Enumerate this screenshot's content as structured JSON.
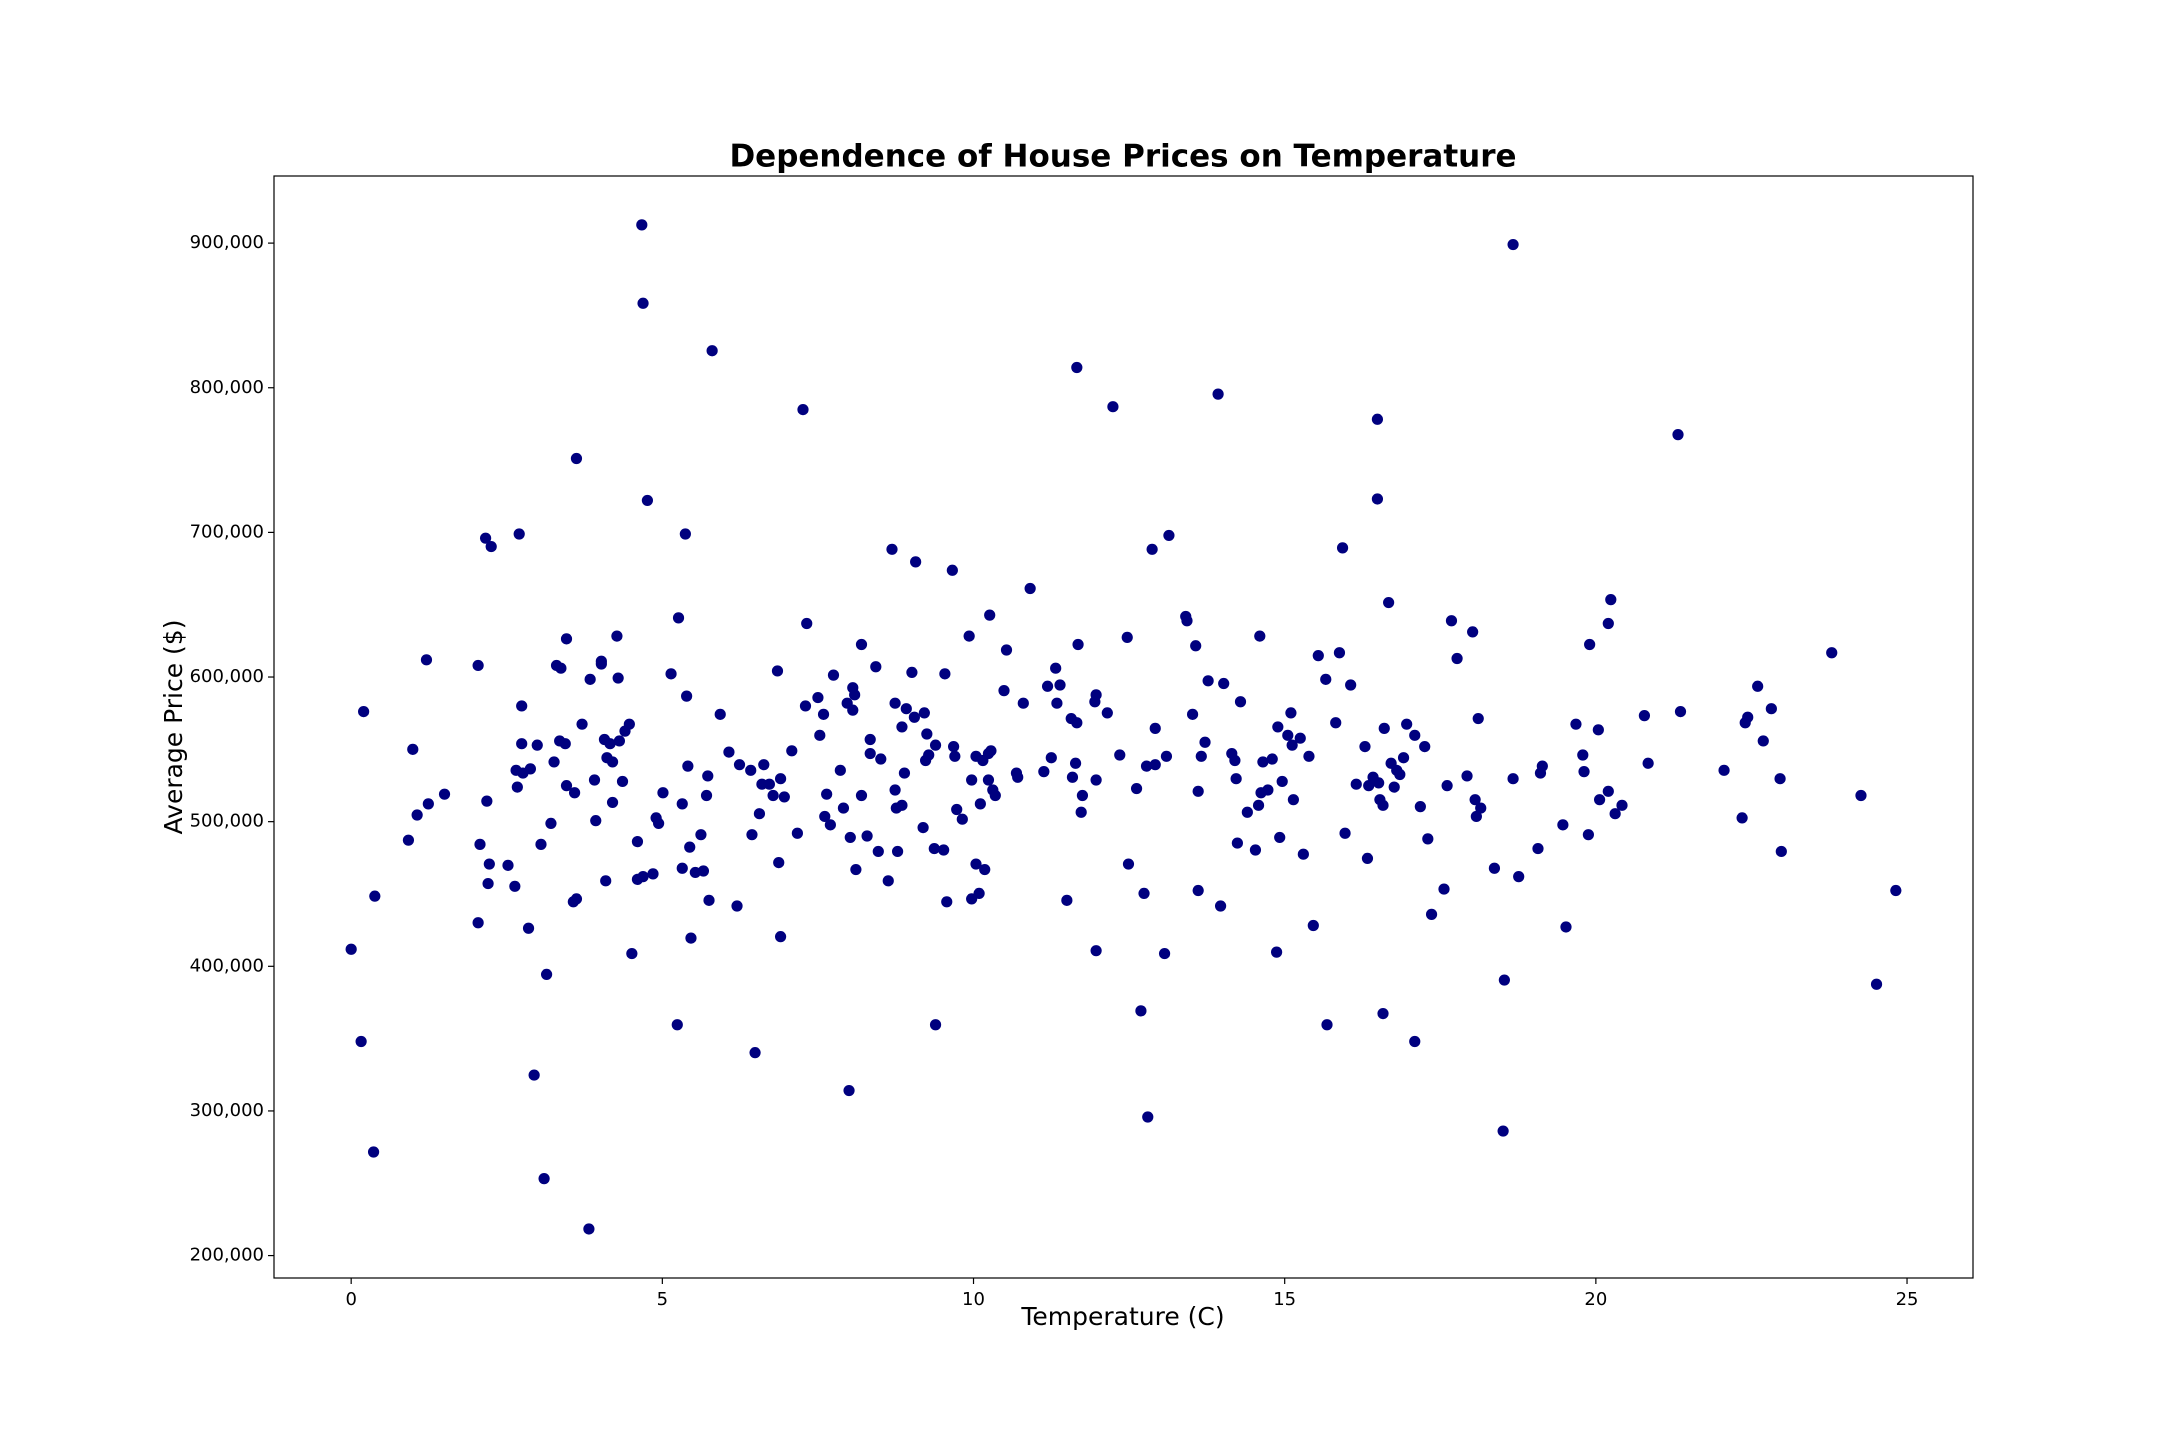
{
  "chart_data": {
    "type": "scatter",
    "title": "Dependence of House Prices on Temperature",
    "x_label": "Temperature (C)",
    "y_label": "Average Price ($)",
    "color": "#00007f",
    "xlim": [
      -1.24,
      26.06
    ],
    "ylim": [
      184500,
      946400
    ],
    "xticks": [
      0,
      5,
      10,
      15,
      20,
      25
    ],
    "yticks": [
      {
        "value": 200000,
        "label": "200,000"
      },
      {
        "value": 300000,
        "label": "300,000"
      },
      {
        "value": 400000,
        "label": "400,000"
      },
      {
        "value": 500000,
        "label": "500,000"
      },
      {
        "value": 600000,
        "label": "600,000"
      },
      {
        "value": 700000,
        "label": "700,000"
      },
      {
        "value": 800000,
        "label": "800,000"
      },
      {
        "value": 900000,
        "label": "900,000"
      }
    ],
    "x": [
      0.0,
      0.16,
      0.2,
      0.36,
      0.38,
      0.92,
      0.99,
      1.06,
      1.21,
      1.24,
      1.5,
      2.04,
      2.04,
      2.07,
      2.16,
      2.18,
      2.2,
      2.25,
      2.22,
      2.52,
      2.63,
      2.65,
      2.7,
      2.67,
      2.74,
      2.74,
      2.76,
      2.85,
      2.88,
      2.94,
      2.99,
      3.05,
      3.1,
      3.14,
      3.21,
      3.26,
      3.3,
      3.37,
      3.35,
      3.44,
      3.46,
      3.46,
      3.57,
      3.62,
      3.62,
      3.59,
      3.71,
      3.82,
      3.84,
      3.91,
      3.93,
      4.02,
      4.02,
      4.07,
      4.09,
      4.11,
      4.16,
      4.2,
      4.2,
      4.27,
      4.29,
      4.31,
      4.36,
      4.4,
      4.47,
      4.51,
      4.6,
      4.6,
      4.67,
      4.69,
      4.69,
      4.76,
      4.85,
      4.9,
      4.94,
      5.01,
      5.14,
      5.24,
      5.26,
      5.32,
      5.32,
      5.37,
      5.39,
      5.41,
      5.44,
      5.46,
      5.53,
      5.62,
      5.66,
      5.71,
      5.73,
      5.75,
      5.8,
      5.93,
      6.07,
      6.2,
      6.24,
      6.42,
      6.44,
      6.49,
      6.56,
      6.6,
      6.63,
      6.72,
      6.78,
      6.85,
      6.87,
      6.9,
      6.9,
      6.96,
      7.08,
      7.17,
      7.26,
      7.3,
      7.32,
      7.5,
      7.53,
      7.59,
      7.61,
      7.64,
      7.7,
      7.75,
      7.86,
      7.91,
      7.97,
      8.0,
      8.02,
      8.06,
      8.06,
      8.09,
      8.11,
      8.2,
      8.2,
      8.29,
      8.34,
      8.34,
      8.43,
      8.47,
      8.51,
      8.63,
      8.69,
      8.74,
      8.74,
      8.76,
      8.78,
      8.85,
      8.85,
      8.89,
      8.92,
      9.01,
      9.05,
      9.07,
      9.19,
      9.21,
      9.23,
      9.25,
      9.28,
      9.37,
      9.39,
      9.39,
      9.52,
      9.54,
      9.57,
      9.66,
      9.68,
      9.7,
      9.73,
      9.82,
      9.93,
      9.97,
      9.97,
      10.04,
      10.04,
      10.09,
      10.11,
      10.15,
      10.18,
      10.24,
      10.24,
      10.26,
      10.28,
      10.31,
      10.35,
      10.49,
      10.53,
      10.69,
      10.71,
      10.8,
      10.91,
      11.13,
      11.19,
      11.25,
      11.32,
      11.34,
      11.39,
      11.5,
      11.57,
      11.59,
      11.64,
      11.66,
      11.66,
      11.68,
      11.73,
      11.75,
      11.95,
      11.97,
      11.97,
      11.97,
      12.15,
      12.24,
      12.35,
      12.47,
      12.49,
      12.62,
      12.69,
      12.74,
      12.78,
      12.8,
      12.87,
      12.92,
      12.92,
      13.07,
      13.1,
      13.14,
      13.41,
      13.43,
      13.52,
      13.57,
      13.61,
      13.61,
      13.66,
      13.72,
      13.77,
      13.93,
      13.97,
      14.02,
      14.15,
      14.2,
      14.22,
      14.24,
      14.29,
      14.4,
      14.53,
      14.58,
      14.6,
      14.62,
      14.65,
      14.73,
      14.8,
      14.87,
      14.89,
      14.92,
      14.96,
      15.05,
      15.1,
      15.12,
      15.14,
      15.25,
      15.3,
      15.39,
      15.46,
      15.54,
      15.66,
      15.68,
      15.82,
      15.88,
      15.93,
      15.97,
      16.06,
      16.15,
      16.29,
      16.33,
      16.35,
      16.42,
      16.49,
      16.49,
      16.51,
      16.53,
      16.58,
      16.58,
      16.6,
      16.67,
      16.71,
      16.76,
      16.8,
      16.85,
      16.91,
      16.96,
      17.09,
      17.09,
      17.18,
      17.25,
      17.3,
      17.36,
      17.56,
      17.61,
      17.68,
      17.77,
      17.93,
      18.02,
      18.06,
      18.08,
      18.11,
      18.15,
      18.37,
      18.51,
      18.53,
      18.67,
      18.67,
      18.76,
      19.07,
      19.11,
      19.14,
      19.47,
      19.52,
      19.68,
      19.79,
      19.81,
      19.88,
      19.9,
      20.04,
      20.06,
      20.2,
      20.2,
      20.24,
      20.31,
      20.42,
      20.78,
      20.84,
      21.32,
      21.36,
      22.06,
      22.35,
      22.4,
      22.44,
      22.6,
      22.69,
      22.82,
      22.96,
      22.98,
      23.79,
      24.26,
      24.51,
      24.82
    ],
    "values": [
      411800,
      348000,
      576100,
      271600,
      448500,
      487200,
      550000,
      504600,
      611900,
      512300,
      519000,
      430100,
      608000,
      484300,
      696000,
      514200,
      457200,
      690200,
      470700,
      469800,
      455300,
      535500,
      698900,
      523900,
      580000,
      553900,
      533600,
      426300,
      536500,
      324800,
      552900,
      484300,
      253200,
      394400,
      498800,
      541300,
      608000,
      606100,
      555800,
      553900,
      626400,
      524900,
      444600,
      751100,
      446600,
      520000,
      567400,
      218400,
      598400,
      528800,
      500700,
      610900,
      609000,
      556800,
      459100,
      544200,
      553900,
      513300,
      541300,
      628300,
      599300,
      555800,
      527800,
      562600,
      567400,
      408800,
      486200,
      460100,
      912600,
      858400,
      462000,
      722100,
      463900,
      502600,
      498800,
      520000,
      602200,
      359600,
      640900,
      467800,
      512300,
      698900,
      586800,
      538400,
      482400,
      419500,
      464900,
      491000,
      465900,
      518100,
      531600,
      445600,
      825600,
      574200,
      548100,
      441700,
      539400,
      535500,
      491000,
      340300,
      505500,
      525900,
      539400,
      525900,
      518100,
      604200,
      471700,
      420500,
      529700,
      517100,
      549000,
      492000,
      784900,
      580000,
      637000,
      585800,
      559700,
      574200,
      503600,
      519000,
      497800,
      601300,
      535500,
      509400,
      581900,
      314100,
      489100,
      592600,
      577100,
      587700,
      466900,
      622500,
      518100,
      490100,
      556800,
      547100,
      607100,
      479400,
      543300,
      459100,
      688300,
      581900,
      521900,
      509400,
      479400,
      565500,
      511300,
      533600,
      578100,
      603200,
      572200,
      679600,
      495900,
      575200,
      542300,
      560600,
      546100,
      481400,
      359600,
      552900,
      480400,
      602200,
      444600,
      673800,
      551900,
      545200,
      508400,
      501700,
      628300,
      446600,
      528800,
      470700,
      545200,
      450400,
      512300,
      542300,
      466900,
      547100,
      528800,
      642800,
      549000,
      521900,
      518100,
      590600,
      618700,
      533600,
      530700,
      581900,
      661200,
      534600,
      593600,
      544200,
      606100,
      581900,
      594500,
      445600,
      571300,
      530700,
      540400,
      814000,
      568400,
      622500,
      506500,
      518100,
      582900,
      587700,
      410800,
      528800,
      575200,
      786900,
      546100,
      627400,
      470700,
      522900,
      369200,
      450400,
      538400,
      295800,
      688300,
      564500,
      539400,
      408800,
      545200,
      697900,
      641900,
      638900,
      574200,
      621600,
      521000,
      452400,
      545200,
      554900,
      597400,
      795600,
      441700,
      595500,
      547100,
      542300,
      529700,
      485200,
      582900,
      506500,
      480400,
      511300,
      628300,
      520000,
      541300,
      521900,
      543300,
      409800,
      565500,
      489100,
      527800,
      559700,
      575200,
      552900,
      515200,
      557700,
      477500,
      545200,
      428200,
      614800,
      598400,
      359600,
      568400,
      616800,
      689300,
      492000,
      594500,
      525900,
      551900,
      474600,
      524900,
      530700,
      778200,
      723100,
      526800,
      515200,
      367300,
      511300,
      564500,
      651500,
      540400,
      523900,
      535500,
      532600,
      544200,
      567400,
      348000,
      559700,
      510400,
      551900,
      488100,
      435900,
      453400,
      524900,
      638900,
      612800,
      531600,
      631200,
      515200,
      503600,
      571300,
      509400,
      467800,
      286100,
      390500,
      899000,
      529700,
      462000,
      481400,
      533600,
      538400,
      497800,
      427200,
      567400,
      546100,
      534600,
      491000,
      622500,
      563500,
      515200,
      521000,
      637000,
      653500,
      505500,
      511300,
      573300,
      540400,
      767600,
      576100,
      535500,
      502600,
      568400,
      572200,
      593600,
      555800,
      578100,
      529700,
      479400,
      616800,
      518100,
      387600,
      452400
    ]
  }
}
